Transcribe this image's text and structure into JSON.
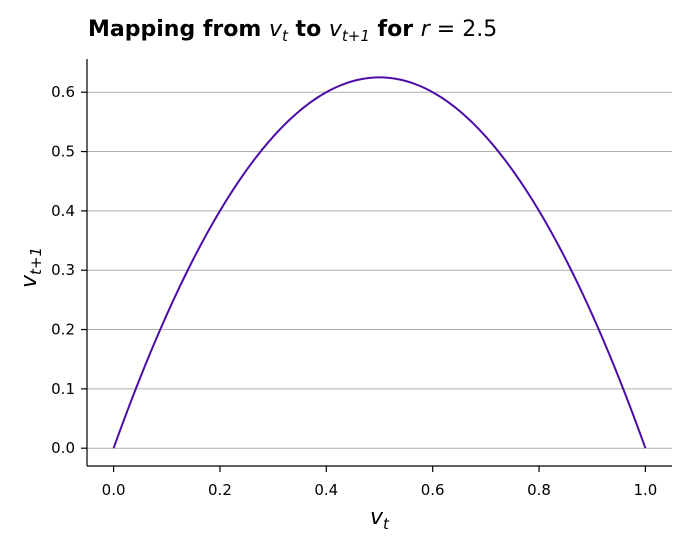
{
  "chart_data": {
    "type": "line",
    "title": {
      "prefix": "Mapping from ",
      "var_from": "v",
      "var_from_sub": "t",
      "connector": " to ",
      "var_to": "v",
      "var_to_sub": "t+1",
      "suffix": " for ",
      "param_name": "r",
      "param_value": " = 2.5"
    },
    "xlabel": {
      "base": "v",
      "sub": "t"
    },
    "ylabel": {
      "base": "v",
      "sub": "t+1"
    },
    "r": 2.5,
    "x_range": [
      0.0,
      1.0
    ],
    "xlim": [
      -0.05,
      1.05
    ],
    "ylim": [
      -0.03,
      0.656
    ],
    "xticks": [
      0.0,
      0.2,
      0.4,
      0.6,
      0.8,
      1.0
    ],
    "yticks": [
      0.0,
      0.1,
      0.2,
      0.3,
      0.4,
      0.5,
      0.6
    ],
    "xtick_labels": [
      "0.0",
      "0.2",
      "0.4",
      "0.6",
      "0.8",
      "1.0"
    ],
    "ytick_labels": [
      "0.0",
      "0.1",
      "0.2",
      "0.3",
      "0.4",
      "0.5",
      "0.6"
    ],
    "grid": "horizontal",
    "series": [
      {
        "color": "#4b0ca8",
        "x": [
          0.0,
          0.05,
          0.1,
          0.15,
          0.2,
          0.25,
          0.3,
          0.35,
          0.4,
          0.45,
          0.5,
          0.55,
          0.6,
          0.65,
          0.7,
          0.75,
          0.8,
          0.85,
          0.9,
          0.95,
          1.0
        ],
        "y": [
          0.0,
          0.119,
          0.225,
          0.319,
          0.4,
          0.469,
          0.525,
          0.569,
          0.6,
          0.619,
          0.625,
          0.619,
          0.6,
          0.569,
          0.525,
          0.469,
          0.4,
          0.319,
          0.225,
          0.119,
          0.0
        ]
      }
    ]
  }
}
